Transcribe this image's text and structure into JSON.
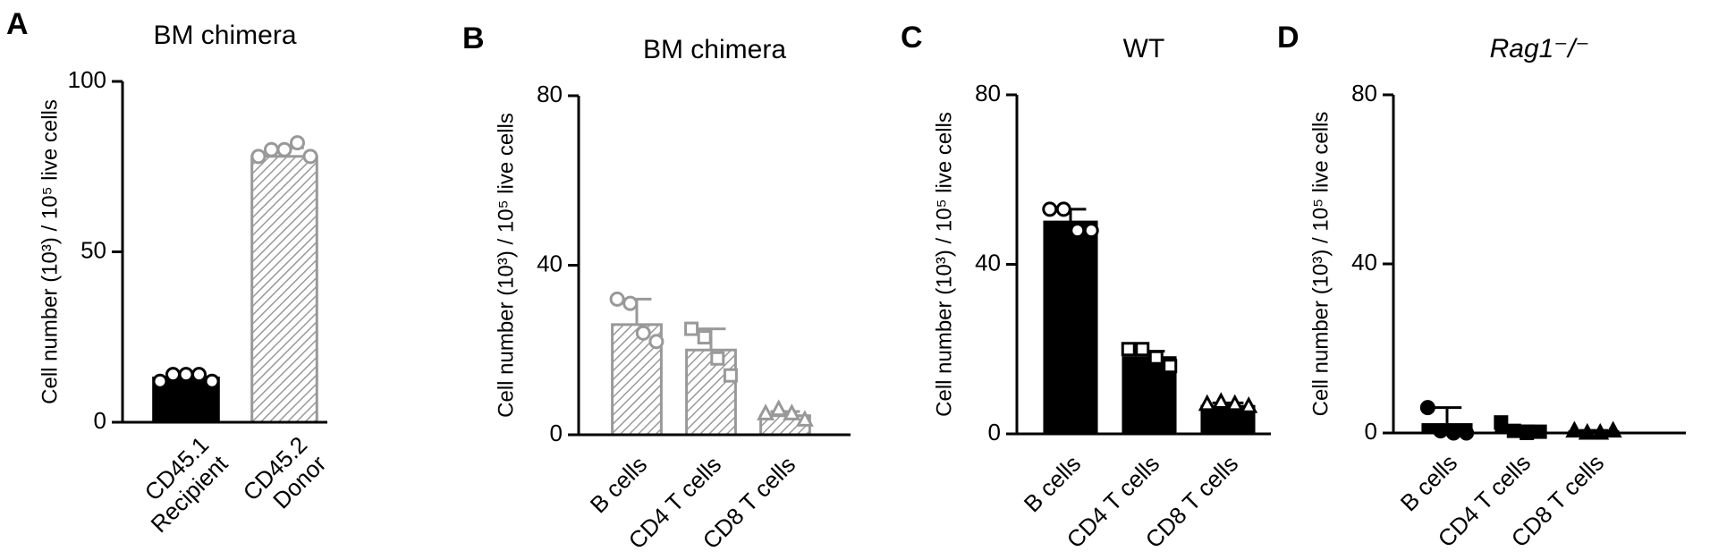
{
  "chart_data": [
    {
      "type": "bar",
      "label": "A",
      "title": "BM chimera",
      "title_italic": false,
      "ylabel": "Cell number (10³) / 10⁵ live cells",
      "categories": [
        [
          "CD45.1",
          "Recipient"
        ],
        [
          "CD45.2",
          "Donor"
        ]
      ],
      "values": [
        13,
        78
      ],
      "errors": [
        1,
        2.5
      ],
      "points": [
        [
          12,
          14,
          14,
          14,
          12
        ],
        [
          78,
          80,
          80,
          82,
          78
        ]
      ],
      "bar_colors": [
        "#000000",
        "#999999"
      ],
      "bar_fills": [
        "solid",
        "hatch"
      ],
      "markers": [
        "circle",
        "circle"
      ],
      "marker_filled": false,
      "ylim": [
        0,
        100
      ],
      "yticks": [
        0,
        50,
        100
      ]
    },
    {
      "type": "bar",
      "label": "B",
      "title": "BM chimera",
      "title_italic": false,
      "ylabel": "Cell number (10³) / 10⁵ live cells",
      "categories": [
        [
          "B cells"
        ],
        [
          "CD4 T cells"
        ],
        [
          "CD8 T cells"
        ]
      ],
      "values": [
        26,
        20,
        4.5
      ],
      "errors": [
        6,
        5,
        1
      ],
      "points": [
        [
          32,
          31,
          24,
          22
        ],
        [
          25,
          23,
          18,
          14
        ],
        [
          5,
          6,
          5,
          3.5
        ]
      ],
      "bar_colors": [
        "#999999",
        "#999999",
        "#999999"
      ],
      "bar_fills": [
        "hatch",
        "hatch",
        "hatch"
      ],
      "markers": [
        "circle",
        "square",
        "triangle"
      ],
      "marker_filled": false,
      "ylim": [
        0,
        80
      ],
      "yticks": [
        0,
        40,
        80
      ]
    },
    {
      "type": "bar",
      "label": "C",
      "title": "WT",
      "title_italic": false,
      "ylabel": "Cell number (10³) / 10⁵ live cells",
      "categories": [
        [
          "B cells"
        ],
        [
          "CD4 T cells"
        ],
        [
          "CD8 T cells"
        ]
      ],
      "values": [
        50,
        18,
        6.5
      ],
      "errors": [
        3,
        1.5,
        0.8
      ],
      "points": [
        [
          53,
          53,
          48,
          48
        ],
        [
          20,
          20,
          18,
          16
        ],
        [
          7,
          7.5,
          7,
          6.5
        ]
      ],
      "bar_colors": [
        "#000000",
        "#000000",
        "#000000"
      ],
      "bar_fills": [
        "solid",
        "solid",
        "solid"
      ],
      "markers": [
        "circle",
        "square",
        "triangle"
      ],
      "marker_filled": false,
      "ylim": [
        0,
        80
      ],
      "yticks": [
        0,
        40,
        80
      ]
    },
    {
      "type": "bar",
      "label": "D",
      "title": "Rag1⁻/⁻",
      "title_italic": true,
      "ylabel": "Cell number (10³) / 10⁵ live cells",
      "categories": [
        [
          "B cells"
        ],
        [
          "CD4 T cells"
        ],
        [
          "CD8 T cells"
        ]
      ],
      "values": [
        2,
        1,
        0.3
      ],
      "errors": [
        4,
        0.7,
        0.3
      ],
      "points": [
        [
          6,
          0.5,
          0,
          0
        ],
        [
          2.5,
          0.5,
          0,
          0.3
        ],
        [
          0.5,
          0,
          0,
          0.5
        ]
      ],
      "bar_colors": [
        "#000000",
        "#000000",
        "#000000"
      ],
      "bar_fills": [
        "solid",
        "solid",
        "solid"
      ],
      "markers": [
        "circle",
        "square",
        "triangle"
      ],
      "marker_filled": true,
      "ylim": [
        0,
        80
      ],
      "yticks": [
        0,
        40,
        80
      ]
    }
  ]
}
